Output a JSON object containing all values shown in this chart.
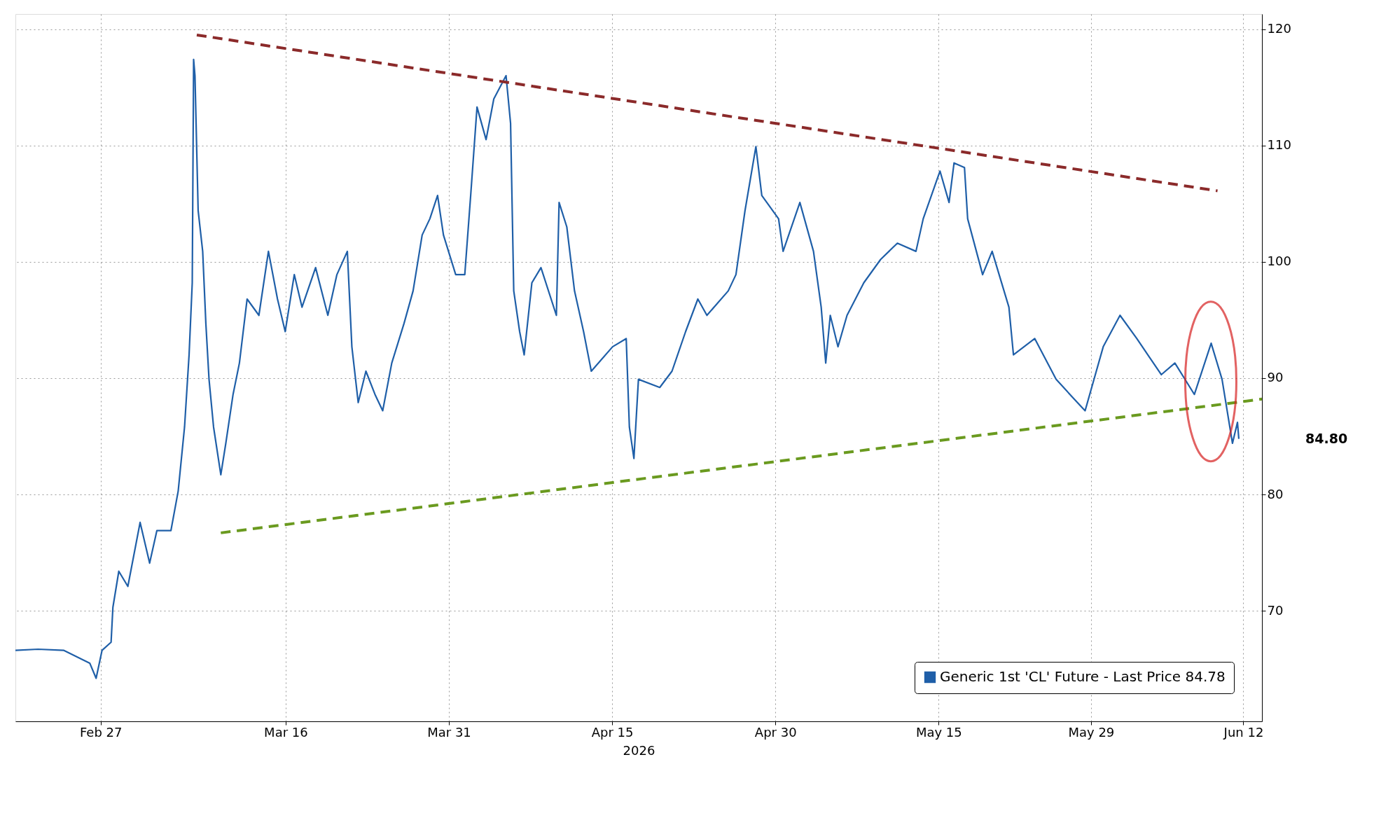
{
  "chart_data": {
    "type": "line",
    "xlabel": "2026",
    "xlim": [
      "2026-02-19T04:00",
      "2026-06-13T17:00"
    ],
    "ylim": [
      60.5,
      121.3
    ],
    "xticks": [
      {
        "value": "2026-02-27",
        "label": "Feb 27"
      },
      {
        "value": "2026-03-16",
        "label": "Mar 16"
      },
      {
        "value": "2026-03-31",
        "label": "Mar 31"
      },
      {
        "value": "2026-04-15",
        "label": "Apr 15"
      },
      {
        "value": "2026-04-30",
        "label": "Apr 30"
      },
      {
        "value": "2026-05-15",
        "label": "May 15"
      },
      {
        "value": "2026-05-29",
        "label": "May 29"
      },
      {
        "value": "2026-06-12",
        "label": "Jun 12"
      }
    ],
    "yticks": [
      70,
      80,
      90,
      100,
      110,
      120
    ],
    "grid": true,
    "legend": "bottom right",
    "series": [
      {
        "name": "Generic 1st 'CL' Future - Last Price 84.78",
        "color": "#1f5fa8",
        "line_style": "solid",
        "x": [
          "2026-02-19T04:00",
          "2026-02-21T06:00",
          "2026-02-23T15:00",
          "2026-02-26T00:00",
          "2026-02-26T14:00",
          "2026-02-27T03:00",
          "2026-02-27T23:00",
          "2026-02-28T03:00",
          "2026-02-28T16:00",
          "2026-03-01T12:00",
          "2026-03-02T15:00",
          "2026-03-03T12:00",
          "2026-03-04T04:00",
          "2026-03-05T11:00",
          "2026-03-06T03:00",
          "2026-03-06T17:00",
          "2026-03-07T03:00",
          "2026-03-07T10:00",
          "2026-03-07T13:00",
          "2026-03-07T16:00",
          "2026-03-07T23:00",
          "2026-03-08T09:00",
          "2026-03-08T16:00",
          "2026-03-08T23:00",
          "2026-03-09T09:00",
          "2026-03-10T01:00",
          "2026-03-10T12:00",
          "2026-03-11T04:00",
          "2026-03-11T18:00",
          "2026-03-12T11:00",
          "2026-03-13T13:00",
          "2026-03-14T10:00",
          "2026-03-15T06:00",
          "2026-03-15T23:00",
          "2026-03-16T19:00",
          "2026-03-17T12:00",
          "2026-03-18T18:00",
          "2026-03-19T21:00",
          "2026-03-20T17:00",
          "2026-03-21T16:00",
          "2026-03-22T02:00",
          "2026-03-22T16:00",
          "2026-03-23T09:00",
          "2026-03-24T05:00",
          "2026-03-24T22:00",
          "2026-03-25T18:00",
          "2026-03-26T21:00",
          "2026-03-27T17:00",
          "2026-03-28T13:00",
          "2026-03-29T06:00",
          "2026-03-29T23:00",
          "2026-03-30T12:00",
          "2026-03-31T15:00",
          "2026-04-01T11:00",
          "2026-04-02T00:00",
          "2026-04-02T14:00",
          "2026-04-03T10:00",
          "2026-04-04T03:00",
          "2026-04-05T06:00",
          "2026-04-05T16:00",
          "2026-04-05T23:00",
          "2026-04-06T12:00",
          "2026-04-06T22:00",
          "2026-04-07T15:00",
          "2026-04-08T11:00",
          "2026-04-09T21:00",
          "2026-04-10T03:00",
          "2026-04-10T20:00",
          "2026-04-11T13:00",
          "2026-04-12T09:00",
          "2026-04-13T02:00",
          "2026-04-15T01:00",
          "2026-04-16T07:00",
          "2026-04-16T14:00",
          "2026-04-17T00:00",
          "2026-04-17T10:00",
          "2026-04-19T09:00",
          "2026-04-20T12:00",
          "2026-04-21T18:00",
          "2026-04-22T21:00",
          "2026-04-23T17:00",
          "2026-04-25T16:00",
          "2026-04-26T09:00",
          "2026-04-27T05:00",
          "2026-04-28T05:00",
          "2026-04-28T18:00",
          "2026-04-30T07:00",
          "2026-04-30T17:00",
          "2026-05-02T06:00",
          "2026-05-03T12:00",
          "2026-05-04T05:00",
          "2026-05-04T15:00",
          "2026-05-05T01:00",
          "2026-05-05T18:00",
          "2026-05-06T14:00",
          "2026-05-08T03:00",
          "2026-05-09T16:00",
          "2026-05-11T05:00",
          "2026-05-12T22:00",
          "2026-05-13T14:00",
          "2026-05-15T03:00",
          "2026-05-15T23:00",
          "2026-05-16T10:00",
          "2026-05-17T09:00",
          "2026-05-17T16:00",
          "2026-05-19T01:00",
          "2026-05-19T22:00",
          "2026-05-21T11:00",
          "2026-05-21T21:00",
          "2026-05-23T20:00",
          "2026-05-25T19:00",
          "2026-05-27T18:00",
          "2026-05-28T11:00",
          "2026-05-30T03:00",
          "2026-05-31T16:00",
          "2026-06-02T05:00",
          "2026-06-04T11:00",
          "2026-06-05T17:00",
          "2026-06-07T12:00",
          "2026-06-09T01:00",
          "2026-06-10T01:00",
          "2026-06-11T00:00",
          "2026-06-11T11:00",
          "2026-06-11T14:00"
        ],
        "values": [
          66.6,
          66.7,
          66.6,
          65.5,
          64.2,
          66.6,
          67.3,
          70.3,
          73.4,
          72.1,
          77.6,
          74.1,
          76.9,
          76.9,
          80.3,
          85.8,
          92.0,
          98.2,
          117.4,
          116.0,
          104.4,
          100.9,
          94.7,
          89.9,
          85.8,
          81.7,
          84.4,
          88.6,
          91.3,
          96.8,
          95.4,
          100.9,
          96.8,
          94.0,
          98.9,
          96.1,
          99.5,
          95.4,
          98.9,
          100.9,
          92.7,
          87.9,
          90.6,
          88.6,
          87.2,
          91.3,
          94.7,
          97.5,
          102.3,
          103.7,
          105.7,
          102.3,
          98.9,
          98.9,
          105.7,
          113.3,
          110.5,
          114.0,
          116.0,
          111.9,
          97.5,
          94.0,
          92.0,
          98.2,
          99.5,
          95.4,
          105.1,
          103.0,
          97.5,
          94.0,
          90.6,
          92.7,
          93.4,
          85.8,
          83.1,
          89.9,
          89.2,
          90.6,
          94.0,
          96.8,
          95.4,
          97.5,
          98.9,
          104.4,
          109.9,
          105.7,
          103.7,
          100.9,
          105.1,
          100.9,
          96.1,
          91.3,
          95.4,
          92.7,
          95.4,
          98.2,
          100.2,
          101.6,
          100.9,
          103.7,
          107.8,
          105.1,
          108.5,
          108.1,
          103.7,
          98.9,
          100.9,
          96.1,
          92.0,
          93.4,
          89.9,
          87.9,
          87.2,
          92.7,
          95.4,
          93.4,
          90.3,
          91.3,
          88.6,
          93.0,
          89.9,
          84.4,
          86.2,
          84.78
        ]
      },
      {
        "type": "line",
        "color": "#8b2a2a",
        "line_style": "dashed",
        "x": [
          "2026-03-07T20:00",
          "2026-06-09T15:00"
        ],
        "values": [
          119.5,
          106.1
        ]
      },
      {
        "type": "line",
        "color": "#6a9a1f",
        "line_style": "dashed",
        "x": [
          "2026-03-10T01:00",
          "2026-06-13T17:00"
        ],
        "values": [
          76.7,
          88.2
        ]
      }
    ],
    "annotations": [
      "84.80"
    ]
  }
}
